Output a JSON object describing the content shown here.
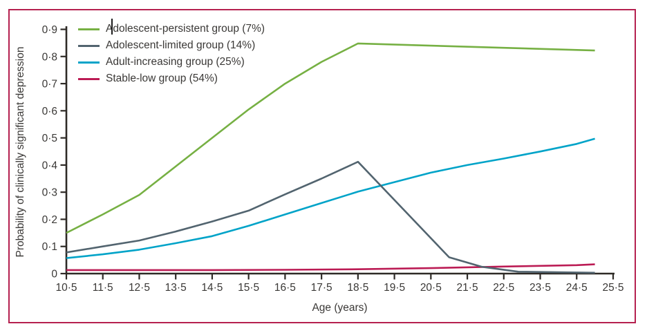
{
  "figure": {
    "border_color": "#b5204f",
    "background_color": "#ffffff",
    "axis_color": "#2e2a26",
    "text_color": "#3a3836",
    "text_cursor_visible": true
  },
  "chart_data": {
    "type": "line",
    "title": "",
    "xlabel": "Age (years)",
    "ylabel": "Probability of clinically significant depression",
    "xlim": [
      10.5,
      25.5
    ],
    "ylim": [
      0,
      0.9
    ],
    "grid": false,
    "legend_position": "top-left",
    "x_ticks": [
      10.5,
      11.5,
      12.5,
      13.5,
      14.5,
      15.5,
      16.5,
      17.5,
      18.5,
      19.5,
      20.5,
      21.5,
      22.5,
      23.5,
      24.5,
      25.5
    ],
    "x_tick_labels": [
      "10·5",
      "11·5",
      "12·5",
      "13·5",
      "14·5",
      "15·5",
      "16·5",
      "17·5",
      "18·5",
      "19·5",
      "20·5",
      "21·5",
      "22·5",
      "23·5",
      "24·5",
      "25·5"
    ],
    "y_ticks": [
      0,
      0.1,
      0.2,
      0.3,
      0.4,
      0.5,
      0.6,
      0.7,
      0.8,
      0.9
    ],
    "y_tick_labels": [
      "0",
      "0·1",
      "0·2",
      "0·3",
      "0·4",
      "0·5",
      "0·6",
      "0·7",
      "0·8",
      "0·9"
    ],
    "series": [
      {
        "id": "stable-low",
        "label": "Stable-low group (54%)",
        "color": "#bb1b54",
        "points": [
          [
            10.5,
            0.013
          ],
          [
            12.5,
            0.013
          ],
          [
            14.5,
            0.013
          ],
          [
            16.5,
            0.014
          ],
          [
            18.5,
            0.016
          ],
          [
            20.5,
            0.02
          ],
          [
            22.5,
            0.026
          ],
          [
            24.5,
            0.031
          ],
          [
            25.0,
            0.034
          ]
        ]
      },
      {
        "id": "adult-increasing",
        "label": "Adult-increasing group (25%)",
        "color": "#00a3c8",
        "points": [
          [
            10.5,
            0.057
          ],
          [
            11.5,
            0.071
          ],
          [
            12.5,
            0.088
          ],
          [
            13.5,
            0.112
          ],
          [
            14.5,
            0.138
          ],
          [
            15.5,
            0.176
          ],
          [
            16.5,
            0.218
          ],
          [
            17.5,
            0.26
          ],
          [
            18.5,
            0.302
          ],
          [
            19.5,
            0.337
          ],
          [
            20.5,
            0.372
          ],
          [
            21.5,
            0.4
          ],
          [
            22.5,
            0.424
          ],
          [
            23.5,
            0.45
          ],
          [
            24.5,
            0.478
          ],
          [
            25.0,
            0.497
          ]
        ]
      },
      {
        "id": "adolescent-limited",
        "label": "Adolescent-limited group (14%)",
        "color": "#52646f",
        "points": [
          [
            10.5,
            0.078
          ],
          [
            11.5,
            0.1
          ],
          [
            12.5,
            0.122
          ],
          [
            13.5,
            0.155
          ],
          [
            14.5,
            0.192
          ],
          [
            15.5,
            0.232
          ],
          [
            16.5,
            0.292
          ],
          [
            17.5,
            0.35
          ],
          [
            18.5,
            0.412
          ],
          [
            21.0,
            0.06
          ],
          [
            21.9,
            0.025
          ],
          [
            22.9,
            0.007
          ],
          [
            25.0,
            0.003
          ]
        ]
      },
      {
        "id": "adolescent-persistent",
        "label": "Adolescent-persistent group (7%)",
        "color": "#76b043",
        "points": [
          [
            10.5,
            0.15
          ],
          [
            11.5,
            0.218
          ],
          [
            12.5,
            0.29
          ],
          [
            13.5,
            0.395
          ],
          [
            14.5,
            0.5
          ],
          [
            15.5,
            0.605
          ],
          [
            16.5,
            0.7
          ],
          [
            17.5,
            0.78
          ],
          [
            18.5,
            0.848
          ],
          [
            20.5,
            0.84
          ],
          [
            22.5,
            0.832
          ],
          [
            25.0,
            0.822
          ]
        ]
      }
    ],
    "legend_order": [
      "adolescent-persistent",
      "adolescent-limited",
      "adult-increasing",
      "stable-low"
    ]
  }
}
